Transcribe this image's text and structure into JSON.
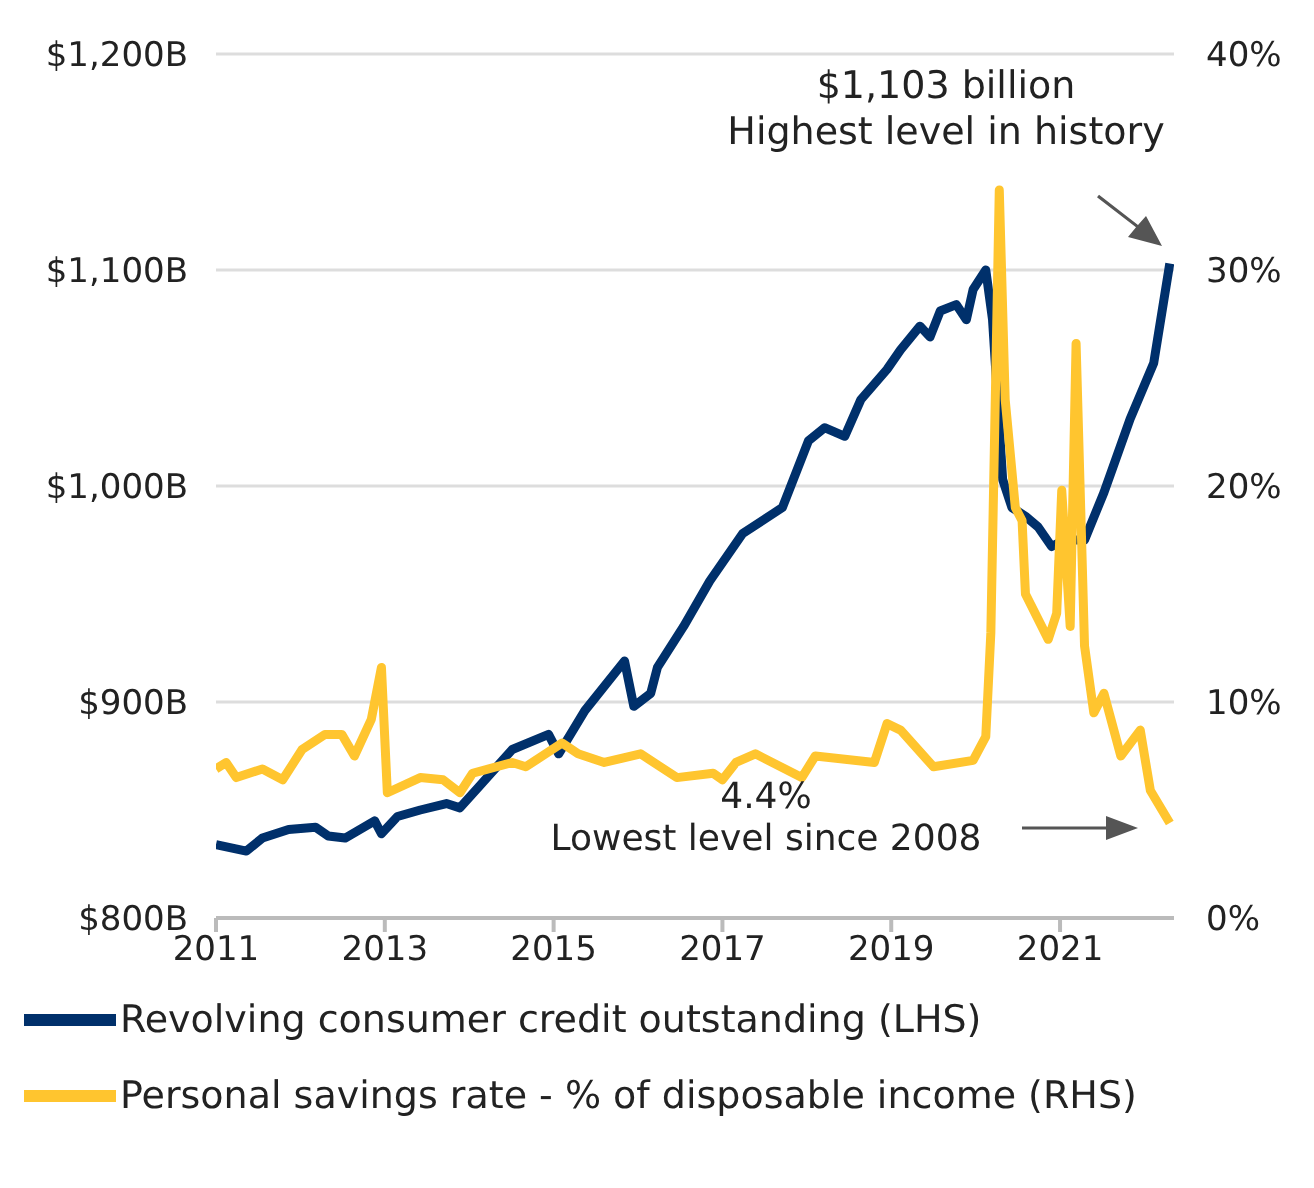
{
  "chart_data": {
    "type": "line",
    "xlim": [
      2011,
      2022.35
    ],
    "xticks": [
      2011,
      2013,
      2015,
      2017,
      2019,
      2021
    ],
    "ylim": [
      800,
      1200
    ],
    "yticks": [
      {
        "value": 800,
        "label": "$800B"
      },
      {
        "value": 900,
        "label": "$900B"
      },
      {
        "value": 1000,
        "label": "$1,000B"
      },
      {
        "value": 1100,
        "label": "$1,100B"
      },
      {
        "value": 1200,
        "label": "$1,200B"
      }
    ],
    "y2lim": [
      0,
      40
    ],
    "y2ticks": [
      {
        "value": 0,
        "label": "0%"
      },
      {
        "value": 10,
        "label": "10%"
      },
      {
        "value": 20,
        "label": "20%"
      },
      {
        "value": 30,
        "label": "30%"
      },
      {
        "value": 40,
        "label": "40%"
      }
    ],
    "grid": "y",
    "legend": "bottom",
    "marker": "none",
    "line_style": "solid",
    "annotations": [
      "$1,103 billion\nHighest level in history",
      "4.4%\nLowest level since 2008"
    ],
    "series": [
      {
        "name": "Revolving consumer credit outstanding (LHS)",
        "color": "#00306b",
        "x": [
          2011.0,
          2011.36,
          2011.55,
          2011.86,
          2012.18,
          2012.33,
          2012.53,
          2012.88,
          2012.96,
          2013.15,
          2013.42,
          2013.73,
          2013.89,
          2014.12,
          2014.51,
          2014.94,
          2015.06,
          2015.37,
          2015.84,
          2015.95,
          2016.15,
          2016.23,
          2016.54,
          2016.85,
          2017.24,
          2017.71,
          2018.02,
          2018.21,
          2018.45,
          2018.64,
          2018.95,
          2019.11,
          2019.34,
          2019.46,
          2019.58,
          2019.77,
          2019.89,
          2019.97,
          2020.12,
          2020.2,
          2020.32,
          2020.43,
          2020.59,
          2020.74,
          2020.9,
          2021.05,
          2021.29,
          2021.52,
          2021.83,
          2022.11,
          2022.3
        ],
        "values": [
          834,
          831,
          837,
          841,
          842,
          838,
          837,
          845,
          839,
          847,
          850,
          853,
          851,
          861,
          878,
          885,
          876,
          896,
          919,
          898,
          904,
          916,
          935,
          956,
          978,
          990,
          1021,
          1027,
          1023,
          1040,
          1054,
          1063,
          1074,
          1069,
          1081,
          1084,
          1077,
          1091,
          1100,
          1077,
          1003,
          990,
          986,
          981,
          972,
          975,
          975,
          997,
          1031,
          1057,
          1103
        ],
        "axis": "y"
      },
      {
        "name": "Personal savings rate - % of disposable income (RHS)",
        "color": "#ffc52f",
        "x": [
          2011.0,
          2011.12,
          2011.24,
          2011.55,
          2011.79,
          2012.02,
          2012.29,
          2012.49,
          2012.64,
          2012.84,
          2012.96,
          2013.03,
          2013.42,
          2013.69,
          2013.89,
          2014.04,
          2014.51,
          2014.67,
          2015.1,
          2015.29,
          2015.6,
          2016.03,
          2016.46,
          2016.89,
          2017.0,
          2017.16,
          2017.39,
          2017.94,
          2018.1,
          2018.8,
          2018.95,
          2019.11,
          2019.5,
          2019.97,
          2020.12,
          2020.18,
          2020.28,
          2020.35,
          2020.47,
          2020.55,
          2020.59,
          2020.86,
          2020.96,
          2021.02,
          2021.12,
          2021.19,
          2021.29,
          2021.4,
          2021.52,
          2021.72,
          2021.95,
          2022.07,
          2022.3
        ],
        "values": [
          6.9,
          7.2,
          6.5,
          6.9,
          6.4,
          7.8,
          8.5,
          8.5,
          7.5,
          9.2,
          11.6,
          5.8,
          6.5,
          6.4,
          5.8,
          6.7,
          7.2,
          7.0,
          8.1,
          7.6,
          7.2,
          7.6,
          6.5,
          6.7,
          6.4,
          7.2,
          7.6,
          6.5,
          7.5,
          7.2,
          9.0,
          8.7,
          7.0,
          7.3,
          8.4,
          13.2,
          33.7,
          24.0,
          19.0,
          18.4,
          15.0,
          12.9,
          14.1,
          19.8,
          13.5,
          26.6,
          12.6,
          9.5,
          10.4,
          7.5,
          8.7,
          5.9,
          4.4
        ],
        "axis": "y2"
      }
    ]
  }
}
